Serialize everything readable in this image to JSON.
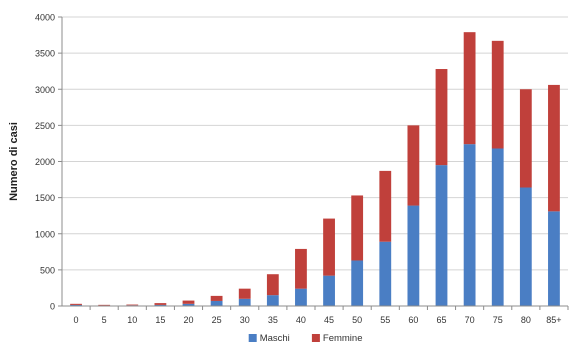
{
  "chart_data": {
    "type": "bar",
    "stacked": true,
    "title": "",
    "xlabel": "",
    "ylabel": "Numero di casi",
    "ylim": [
      0,
      4000
    ],
    "yticks": [
      0,
      500,
      1000,
      1500,
      2000,
      2500,
      3000,
      3500,
      4000
    ],
    "grid": true,
    "legend_position": "bottom",
    "categories": [
      "0",
      "5",
      "10",
      "15",
      "20",
      "25",
      "30",
      "35",
      "40",
      "45",
      "50",
      "55",
      "60",
      "65",
      "70",
      "75",
      "80",
      "85+"
    ],
    "series": [
      {
        "name": "Maschi",
        "color": "#4a7ec4",
        "values": [
          15,
          8,
          10,
          15,
          30,
          70,
          100,
          150,
          240,
          420,
          630,
          890,
          1390,
          1950,
          2240,
          2180,
          1640,
          1310
        ]
      },
      {
        "name": "Femmine",
        "color": "#c0403b",
        "values": [
          15,
          8,
          10,
          25,
          45,
          70,
          140,
          290,
          550,
          790,
          900,
          980,
          1110,
          1330,
          1550,
          1490,
          1360,
          1750
        ]
      }
    ]
  }
}
